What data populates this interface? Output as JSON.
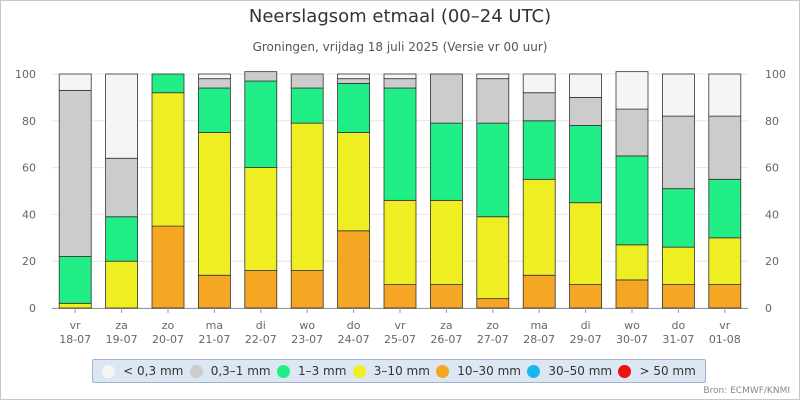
{
  "title": "Neerslagsom etmaal (00–24 UTC)",
  "subtitle": "Groningen, vrijdag 18 juli 2025 (Versie vr 00 uur)",
  "source": "Bron: ECMWF/KNMI",
  "legend": [
    {
      "label": "< 0,3 mm",
      "color": "#f5f5f5"
    },
    {
      "label": "0,3–1 mm",
      "color": "#cccccc"
    },
    {
      "label": "1–3 mm",
      "color": "#22ee88"
    },
    {
      "label": "3–10 mm",
      "color": "#eeee22"
    },
    {
      "label": "10–30 mm",
      "color": "#f5a623"
    },
    {
      "label": "30–50 mm",
      "color": "#1bb6ee"
    },
    {
      "label": "> 50 mm",
      "color": "#ee1111"
    }
  ],
  "chart_data": {
    "type": "bar",
    "stacked": true,
    "ylim": [
      0,
      100
    ],
    "yticks": [
      0,
      20,
      40,
      60,
      80,
      100
    ],
    "dual_y_axis": true,
    "categories": [
      {
        "day": "vr",
        "date": "18-07"
      },
      {
        "day": "za",
        "date": "19-07"
      },
      {
        "day": "zo",
        "date": "20-07"
      },
      {
        "day": "ma",
        "date": "21-07"
      },
      {
        "day": "di",
        "date": "22-07"
      },
      {
        "day": "wo",
        "date": "23-07"
      },
      {
        "day": "do",
        "date": "24-07"
      },
      {
        "day": "vr",
        "date": "25-07"
      },
      {
        "day": "za",
        "date": "26-07"
      },
      {
        "day": "zo",
        "date": "27-07"
      },
      {
        "day": "ma",
        "date": "28-07"
      },
      {
        "day": "di",
        "date": "29-07"
      },
      {
        "day": "wo",
        "date": "30-07"
      },
      {
        "day": "do",
        "date": "31-07"
      },
      {
        "day": "vr",
        "date": "01-08"
      }
    ],
    "series": [
      {
        "name": "10–30 mm",
        "color": "#f5a623",
        "values": [
          0,
          0,
          35,
          14,
          16,
          16,
          33,
          10,
          10,
          4,
          14,
          10,
          12,
          10,
          10
        ]
      },
      {
        "name": "3–10 mm",
        "color": "#eeee22",
        "values": [
          2,
          20,
          57,
          61,
          44,
          63,
          42,
          36,
          36,
          35,
          41,
          35,
          15,
          16,
          20
        ]
      },
      {
        "name": "1–3 mm",
        "color": "#22ee88",
        "values": [
          20,
          19,
          8,
          19,
          37,
          15,
          21,
          48,
          33,
          40,
          25,
          33,
          38,
          25,
          25
        ]
      },
      {
        "name": "0,3–1 mm",
        "color": "#cccccc",
        "values": [
          71,
          25,
          0,
          4,
          4,
          6,
          2,
          4,
          21,
          19,
          12,
          12,
          20,
          31,
          27
        ]
      },
      {
        "name": "< 0,3 mm",
        "color": "#f5f5f5",
        "values": [
          7,
          36,
          0,
          2,
          0,
          0,
          2,
          2,
          0,
          2,
          8,
          10,
          16,
          18,
          18
        ]
      }
    ],
    "grid": true,
    "legend_position": "bottom"
  }
}
